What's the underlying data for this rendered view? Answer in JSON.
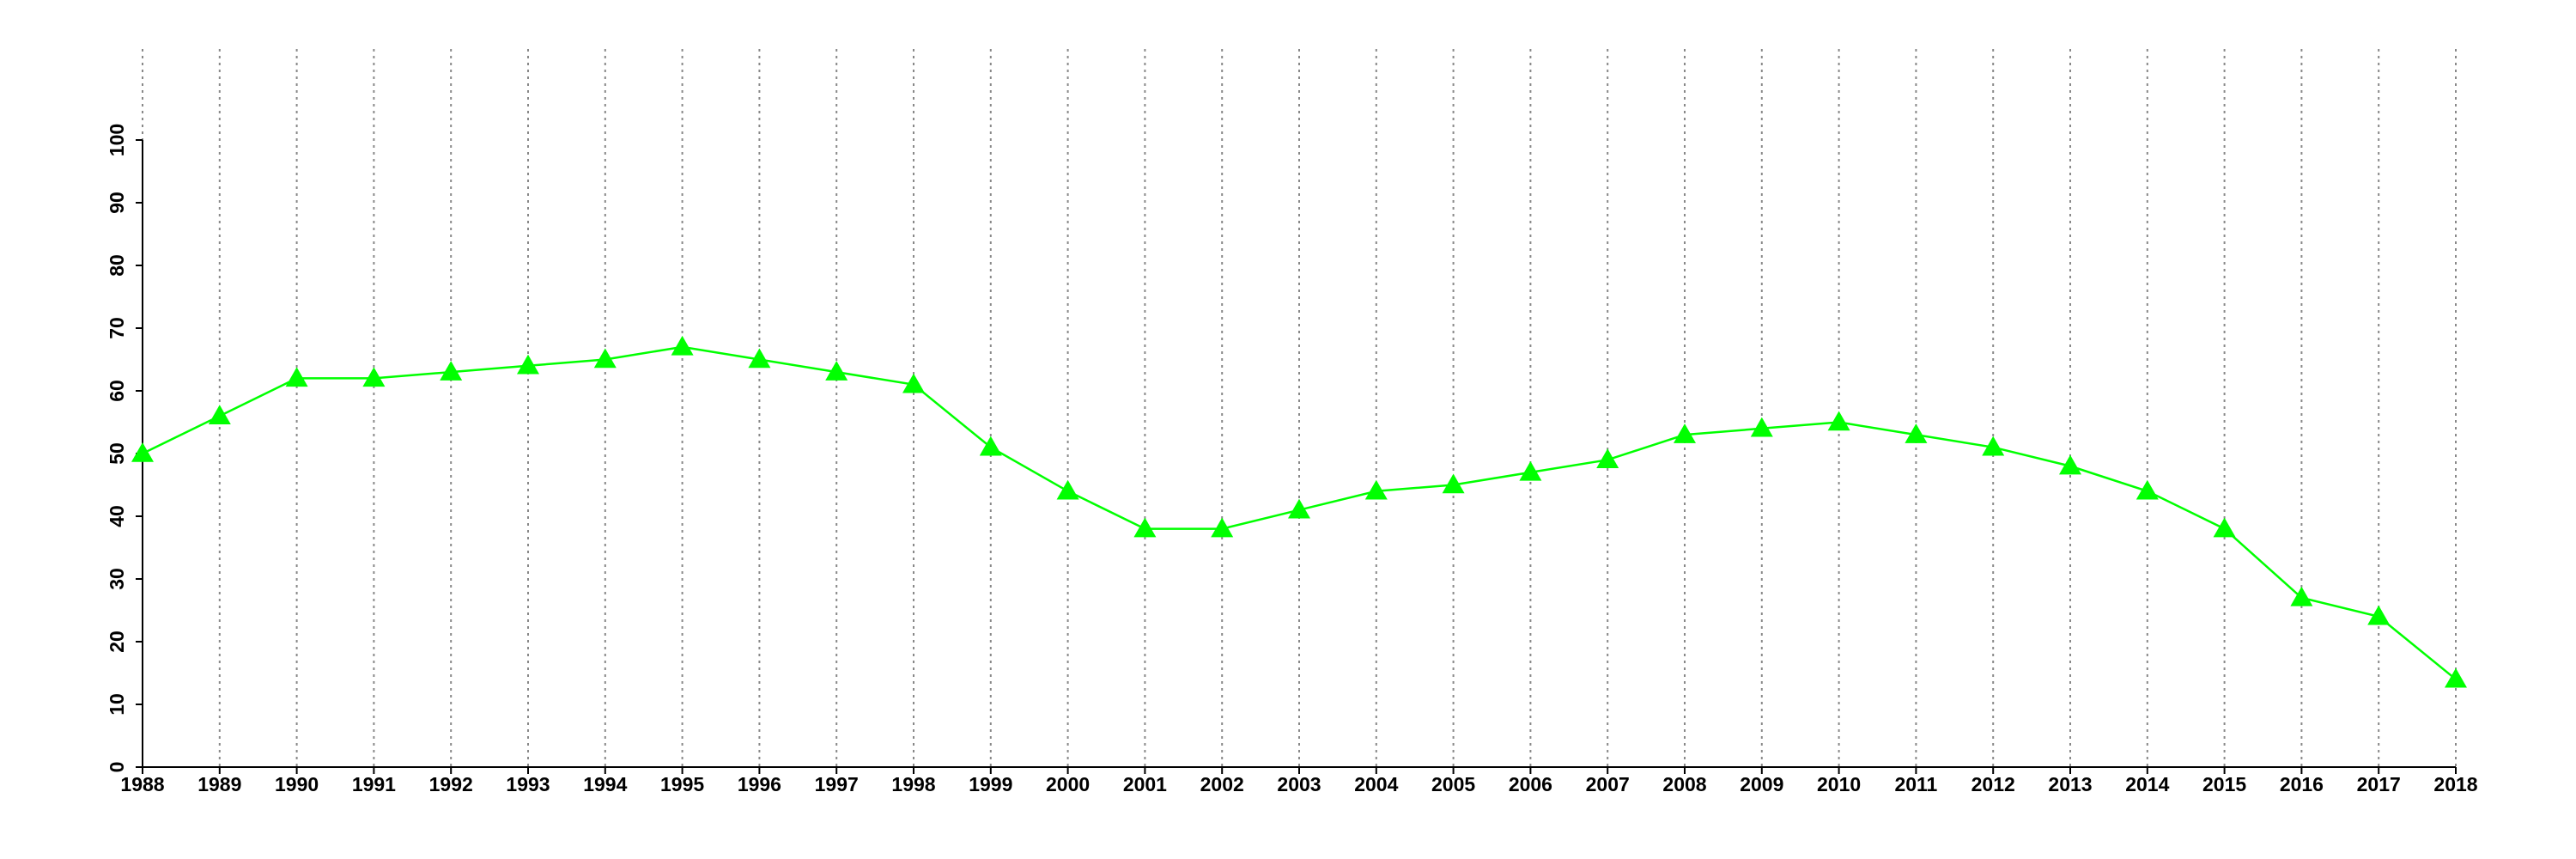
{
  "chart_data": {
    "type": "line",
    "x": [
      1988,
      1989,
      1990,
      1991,
      1992,
      1993,
      1994,
      1995,
      1996,
      1997,
      1998,
      1999,
      2000,
      2001,
      2002,
      2003,
      2004,
      2005,
      2006,
      2007,
      2008,
      2009,
      2010,
      2011,
      2012,
      2013,
      2014,
      2015,
      2016,
      2017,
      2018
    ],
    "series": [
      {
        "color": "#00ff00",
        "marker": "triangle",
        "values": [
          50,
          56,
          62,
          62,
          63,
          64,
          65,
          67,
          65,
          63,
          61,
          51,
          44,
          38,
          38,
          41,
          44,
          45,
          47,
          49,
          53,
          54,
          55,
          53,
          51,
          48,
          44,
          38,
          27,
          24,
          14
        ]
      }
    ],
    "xlim": [
      1988,
      2018
    ],
    "xticks": [
      1988,
      1989,
      1990,
      1991,
      1992,
      1993,
      1994,
      1995,
      1996,
      1997,
      1998,
      1999,
      2000,
      2001,
      2002,
      2003,
      2004,
      2005,
      2006,
      2007,
      2008,
      2009,
      2010,
      2011,
      2012,
      2013,
      2014,
      2015,
      2016,
      2017,
      2018
    ],
    "ylim": [
      0,
      100
    ],
    "yticks": [
      0,
      10,
      20,
      30,
      40,
      50,
      60,
      70,
      80,
      90,
      100
    ],
    "grid": true
  }
}
